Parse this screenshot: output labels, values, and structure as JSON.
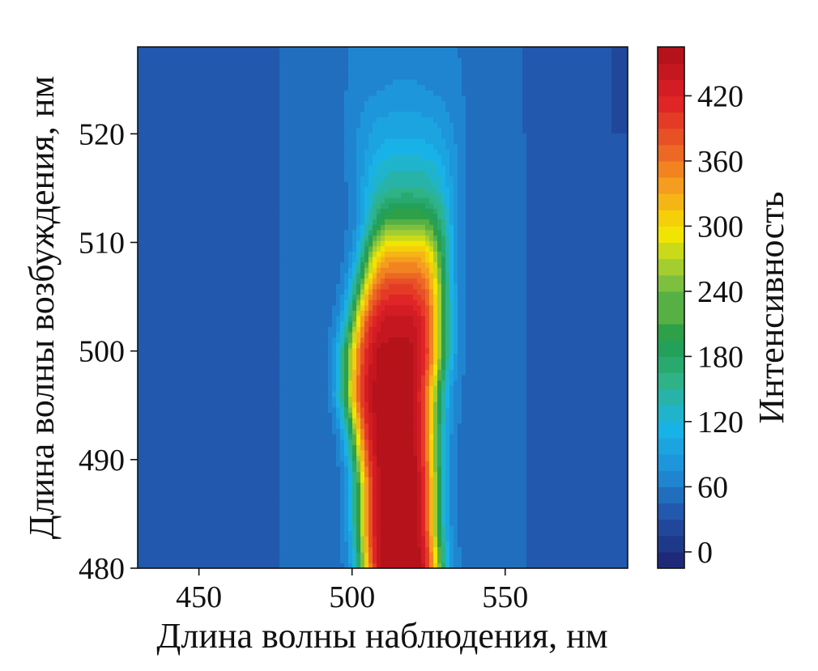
{
  "chart_data": {
    "type": "heatmap",
    "plot_style": "filled-contour",
    "title": "",
    "xlabel": "Длина волны наблюдения, нм",
    "ylabel": "Длина волны возбуждения, нм",
    "colorbar_label": "Интенсивность",
    "xlim": [
      430,
      590
    ],
    "ylim": [
      480,
      528
    ],
    "x_ticks": [
      450,
      500,
      550
    ],
    "y_ticks": [
      480,
      490,
      500,
      510,
      520
    ],
    "colorbar_ticks": [
      0,
      60,
      120,
      180,
      240,
      300,
      360,
      420
    ],
    "colorbar_range": [
      -15,
      465
    ],
    "colormap": [
      "#1e2a78",
      "#2252a8",
      "#1f8fd8",
      "#19b4e8",
      "#2fb38a",
      "#1f9a4a",
      "#8cc63e",
      "#f3e600",
      "#f6a21e",
      "#ea5a25",
      "#de1f26",
      "#b5121b"
    ],
    "background_level": 38,
    "ridge": [
      {
        "y": 480,
        "center": 516,
        "peak": 458,
        "width": 9
      },
      {
        "y": 484,
        "center": 515,
        "peak": 455,
        "width": 9
      },
      {
        "y": 488,
        "center": 515,
        "peak": 452,
        "width": 9
      },
      {
        "y": 492,
        "center": 514,
        "peak": 448,
        "width": 9.5
      },
      {
        "y": 496,
        "center": 513,
        "peak": 445,
        "width": 10.5
      },
      {
        "y": 500,
        "center": 514,
        "peak": 440,
        "width": 11
      },
      {
        "y": 503,
        "center": 515,
        "peak": 420,
        "width": 10.5
      },
      {
        "y": 506,
        "center": 516,
        "peak": 370,
        "width": 10
      },
      {
        "y": 509,
        "center": 517,
        "peak": 300,
        "width": 9.5
      },
      {
        "y": 512,
        "center": 518,
        "peak": 200,
        "width": 9.5
      },
      {
        "y": 515,
        "center": 518,
        "peak": 130,
        "width": 10
      },
      {
        "y": 519,
        "center": 518,
        "peak": 85,
        "width": 11
      },
      {
        "y": 524,
        "center": 517,
        "peak": 50,
        "width": 12
      },
      {
        "y": 528,
        "center": 517,
        "peak": 42,
        "width": 13
      }
    ]
  }
}
